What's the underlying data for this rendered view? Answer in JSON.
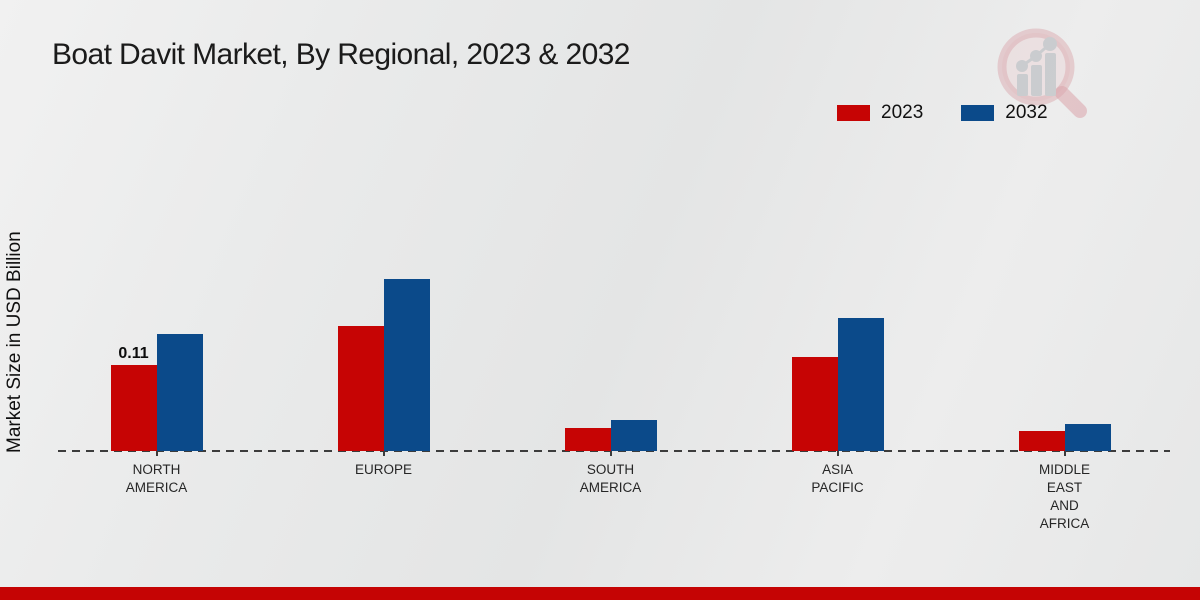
{
  "chart_data": {
    "type": "bar",
    "title": "Boat Davit Market, By Regional, 2023 & 2032",
    "ylabel": "Market Size in USD Billion",
    "xlabel": "",
    "categories": [
      "NORTH\nAMERICA",
      "EUROPE",
      "SOUTH\nAMERICA",
      "ASIA\nPACIFIC",
      "MIDDLE\nEAST\nAND\nAFRICA"
    ],
    "series": [
      {
        "name": "2023",
        "color": "#c60404",
        "values": [
          0.11,
          0.16,
          0.03,
          0.12,
          0.025
        ]
      },
      {
        "name": "2032",
        "color": "#0b4a8a",
        "values": [
          0.15,
          0.22,
          0.04,
          0.17,
          0.035
        ]
      }
    ],
    "annotations": [
      {
        "series_index": 0,
        "category_index": 0,
        "text": "0.11"
      }
    ],
    "ylim": [
      0,
      0.25
    ],
    "grid": false,
    "legend_position": "top-right",
    "baseline_style": "dashed"
  },
  "watermark": {
    "icon": "magnifier-bar-chart-logo"
  },
  "footer": {
    "bar_color": "#c50404"
  }
}
